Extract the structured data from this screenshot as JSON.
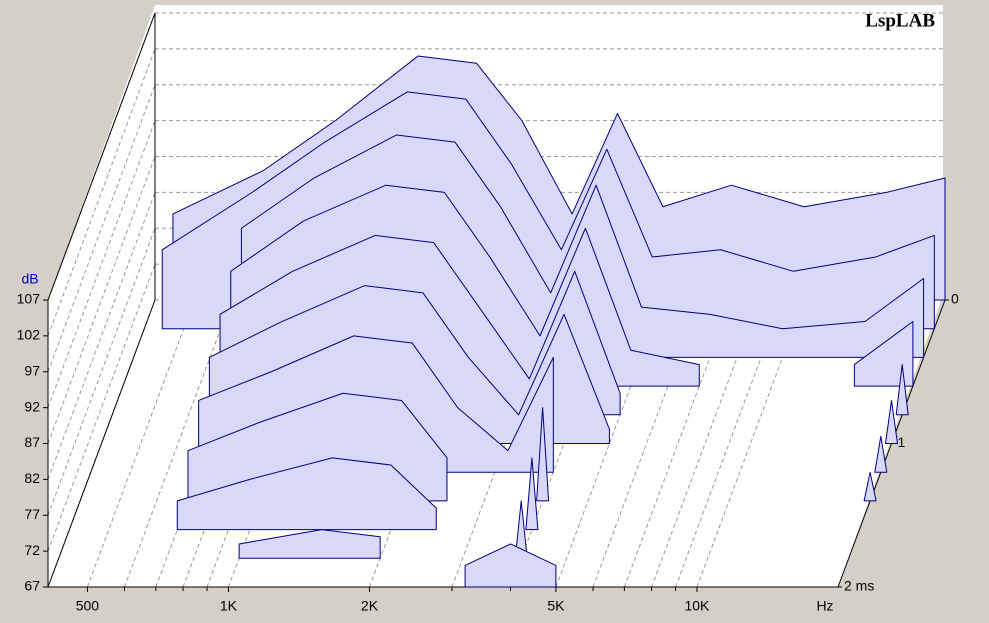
{
  "chart_data": {
    "type": "waterfall",
    "brand": "LspLAB",
    "y_unit": "dB",
    "x_unit": "Hz",
    "x": [
      450,
      700,
      1000,
      1500,
      2000,
      2500,
      3200,
      4000,
      5000,
      7000,
      10000,
      15000,
      20000
    ],
    "xlim": [
      412,
      20000
    ],
    "log_x": true,
    "xticks": [
      {
        "value": 500,
        "label": "500"
      },
      {
        "value": 1000,
        "label": "1K"
      },
      {
        "value": 2000,
        "label": "2K"
      },
      {
        "value": 5000,
        "label": "5K"
      },
      {
        "value": 10000,
        "label": "10K"
      }
    ],
    "xminor": [
      600,
      700,
      800,
      900,
      3000,
      4000,
      6000,
      7000,
      8000,
      9000
    ],
    "ylim": [
      67,
      107
    ],
    "yticks": [
      67,
      72,
      77,
      82,
      87,
      92,
      97,
      102,
      107
    ],
    "tlim": [
      0,
      2
    ],
    "tticks": [
      0,
      1,
      {
        "value": 2,
        "label": "2 ms"
      }
    ],
    "color": "#000080",
    "fill": "#d8d8f8",
    "grid": true,
    "slices": [
      {
        "t": 0,
        "values": [
          79,
          85,
          92,
          101,
          100,
          92,
          79,
          93,
          80,
          83,
          80,
          82,
          84
        ]
      },
      {
        "t": 0.2,
        "values": [
          78,
          86,
          93,
          100,
          99,
          90,
          78,
          92,
          77,
          78,
          75,
          77,
          80
        ]
      },
      {
        "t": 0.4,
        "values": [
          null,
          85,
          92,
          98,
          97,
          88,
          76,
          91,
          74,
          73,
          71,
          72,
          78
        ]
      },
      {
        "t": 0.6,
        "values": [
          null,
          83,
          90,
          95,
          94,
          85,
          74,
          89,
          72,
          70,
          null,
          70,
          76
        ]
      },
      {
        "t": 0.8,
        "values": [
          null,
          81,
          87,
          92,
          91,
          82,
          72,
          87,
          70,
          null,
          null,
          null,
          74
        ]
      },
      {
        "t": 1.0,
        "values": [
          null,
          79,
          84,
          89,
          88,
          79,
          71,
          85,
          69,
          null,
          null,
          null,
          73
        ]
      },
      {
        "t": 1.2,
        "values": [
          null,
          77,
          81,
          86,
          85,
          76,
          70,
          83,
          null,
          null,
          null,
          null,
          72
        ]
      },
      {
        "t": 1.4,
        "values": [
          null,
          74,
          78,
          82,
          81,
          73,
          null,
          80,
          null,
          null,
          null,
          null,
          71
        ]
      },
      {
        "t": 1.6,
        "values": [
          null,
          71,
          74,
          77,
          76,
          70,
          null,
          77,
          null,
          null,
          null,
          null,
          null
        ]
      },
      {
        "t": 1.8,
        "values": [
          null,
          null,
          69,
          71,
          70,
          null,
          null,
          75,
          null,
          null,
          null,
          null,
          null
        ]
      },
      {
        "t": 2.0,
        "values": [
          null,
          null,
          null,
          null,
          null,
          null,
          70,
          73,
          70,
          null,
          null,
          null,
          null
        ]
      }
    ]
  }
}
